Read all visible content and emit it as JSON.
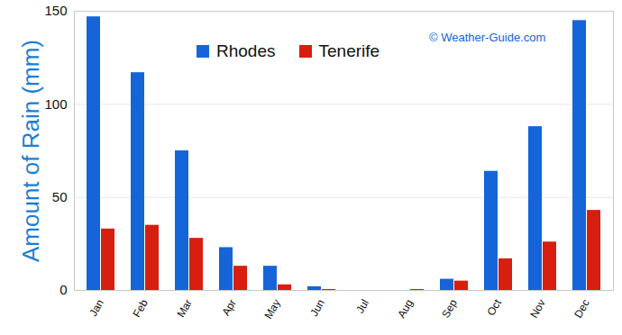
{
  "chart_data": {
    "type": "bar",
    "categories": [
      "Jan",
      "Feb",
      "Mar",
      "Apr",
      "May",
      "Jun",
      "Jul",
      "Aug",
      "Sep",
      "Oct",
      "Nov",
      "Dec"
    ],
    "series": [
      {
        "name": "Rhodes",
        "color": "#1565d8",
        "values": [
          147,
          117,
          75,
          23,
          13,
          2,
          0,
          0,
          6,
          64,
          88,
          145
        ]
      },
      {
        "name": "Tenerife",
        "color": "#d81e0e",
        "values": [
          33,
          35,
          28,
          13,
          3,
          0.5,
          0,
          0.5,
          5,
          17,
          26,
          43
        ]
      }
    ],
    "y_label": "Amount of Rain (mm)",
    "annotations": [
      "© Weather-Guide.com"
    ],
    "ylim": [
      0,
      150
    ],
    "yticks": [
      0,
      50,
      100,
      150
    ],
    "grid": true,
    "legend": "top"
  }
}
